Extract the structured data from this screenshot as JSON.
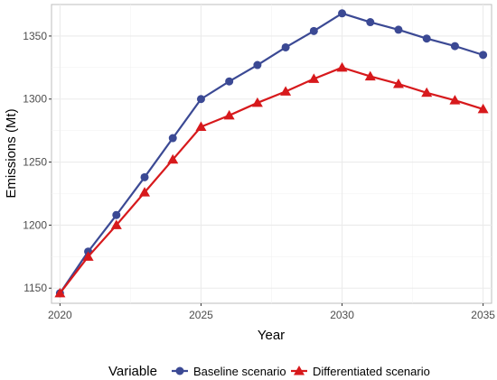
{
  "chart_data": {
    "type": "line",
    "title": "",
    "xlabel": "Year",
    "ylabel": "Emissions (Mt)",
    "xlim": [
      2019.7,
      2035.3
    ],
    "ylim": [
      1138,
      1375
    ],
    "x_ticks": [
      2020,
      2025,
      2030,
      2035
    ],
    "y_ticks": [
      1150,
      1200,
      1250,
      1300,
      1350
    ],
    "grid": true,
    "legend": {
      "title": "Variable",
      "placement": "bottom"
    },
    "x": [
      2020,
      2021,
      2022,
      2023,
      2024,
      2025,
      2026,
      2027,
      2028,
      2029,
      2030,
      2031,
      2032,
      2033,
      2034,
      2035
    ],
    "series": [
      {
        "name": "Baseline scenario",
        "color": "#3b4994",
        "marker": "circle",
        "values": [
          1146,
          1179,
          1208,
          1238,
          1269,
          1300,
          1314,
          1327,
          1341,
          1354,
          1368,
          1361,
          1355,
          1348,
          1342,
          1335
        ]
      },
      {
        "name": "Differentiated scenario",
        "color": "#d7191c",
        "marker": "triangle",
        "values": [
          1146,
          1175,
          1200,
          1226,
          1252,
          1278,
          1287,
          1297,
          1306,
          1316,
          1325,
          1318,
          1312,
          1305,
          1299,
          1292
        ]
      }
    ]
  }
}
